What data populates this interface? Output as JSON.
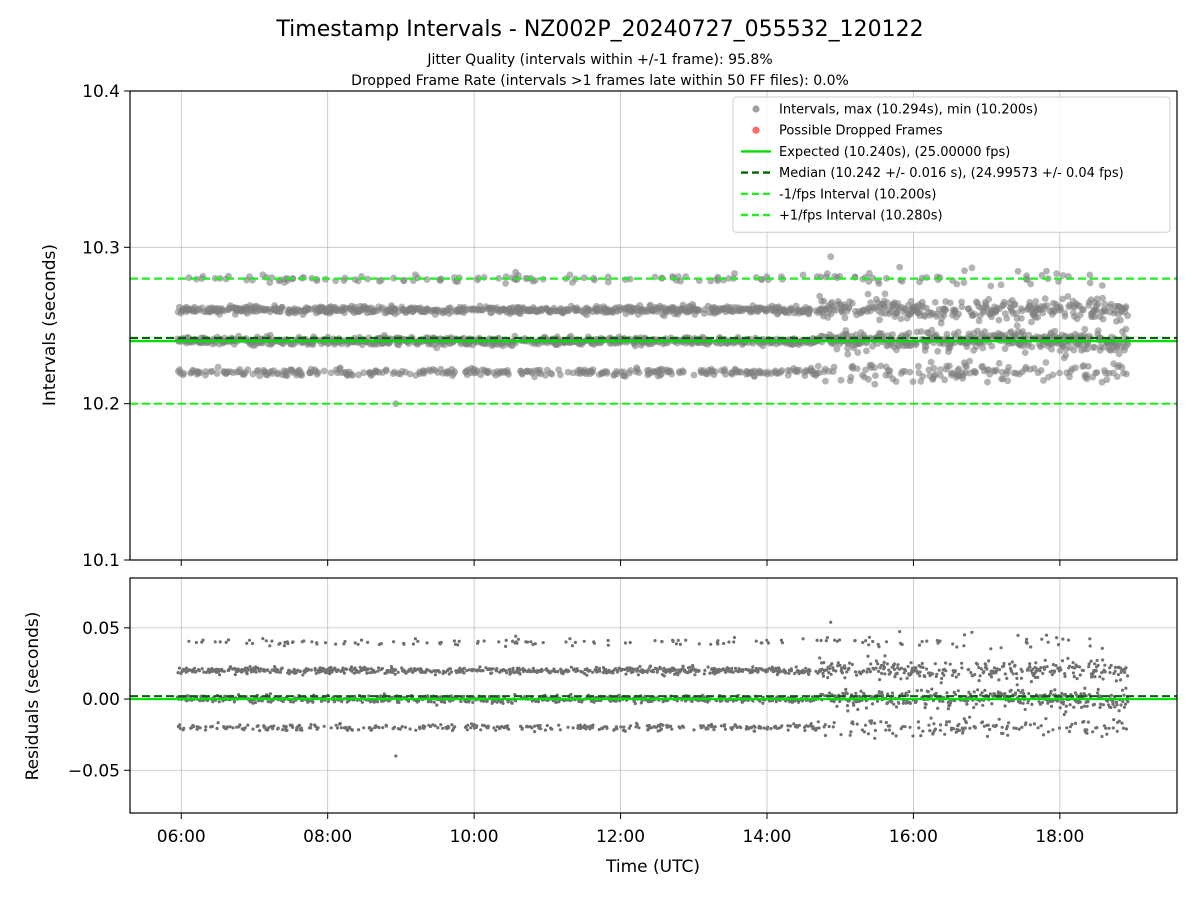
{
  "chart_data": [
    {
      "type": "scatter",
      "title": "Timestamp Intervals - NZ002P_20240727_055532_120122",
      "subtitle_lines": [
        "Jitter Quality (intervals within +/-1 frame): 95.8%",
        "Dropped Frame Rate (intervals >1 frames late within 50 FF files): 0.0%"
      ],
      "ylabel": "Intervals (seconds)",
      "xlabel": "",
      "ylim": [
        10.1,
        10.4
      ],
      "yticks": [
        10.1,
        10.2,
        10.3,
        10.4
      ],
      "ytick_labels": [
        "10.1",
        "10.2",
        "10.3",
        "10.4"
      ],
      "xlim_hours": [
        5.3,
        19.6
      ],
      "xticks_hours": [
        6,
        8,
        10,
        12,
        14,
        16,
        18
      ],
      "grid": true,
      "legend_placement": "top-right",
      "x_range_hours": [
        5.95,
        18.93
      ],
      "point_color": "#808080",
      "dropped_color": "#ff0000",
      "bands": [
        {
          "value": 10.28,
          "share": 0.06
        },
        {
          "value": 10.26,
          "share": 0.36
        },
        {
          "value": 10.24,
          "share": 0.4
        },
        {
          "value": 10.22,
          "share": 0.18
        }
      ],
      "max_point": {
        "x": 14.87,
        "y": 10.294
      },
      "min_point": {
        "x": 8.93,
        "y": 10.2
      },
      "reference_lines": [
        {
          "name": "expected",
          "value": 10.24,
          "color": "#00e000",
          "style": "solid"
        },
        {
          "name": "median",
          "value": 10.242,
          "color": "#006400",
          "style": "dashed"
        },
        {
          "name": "minus",
          "value": 10.2,
          "color": "#22ee22",
          "style": "dashed"
        },
        {
          "name": "plus",
          "value": 10.28,
          "color": "#22ee22",
          "style": "dashed"
        }
      ],
      "legend": [
        {
          "label": "Intervals, max (10.294s), min (10.200s)",
          "kind": "dot",
          "color": "#a0a0a0"
        },
        {
          "label": "Possible Dropped Frames",
          "kind": "dot",
          "color": "#ff6b6b"
        },
        {
          "label": "Expected (10.240s), (25.00000 fps)",
          "kind": "solid",
          "color": "#00e000"
        },
        {
          "label": "Median (10.242 +/- 0.016 s), (24.99573 +/- 0.04 fps)",
          "kind": "dashed",
          "color": "#006400"
        },
        {
          "label": "-1/fps Interval (10.200s)",
          "kind": "dashed",
          "color": "#22ee22"
        },
        {
          "label": "+1/fps Interval (10.280s)",
          "kind": "dashed",
          "color": "#22ee22"
        }
      ]
    },
    {
      "type": "scatter",
      "ylabel": "Residuals (seconds)",
      "xlabel": "Time (UTC)",
      "ylim": [
        -0.08,
        0.085
      ],
      "yticks": [
        -0.05,
        0.0,
        0.05
      ],
      "ytick_labels": [
        "−0.05",
        "0.00",
        "0.05"
      ],
      "xlim_hours": [
        5.3,
        19.6
      ],
      "xticks_hours": [
        6,
        8,
        10,
        12,
        14,
        16,
        18
      ],
      "xtick_labels": [
        "06:00",
        "08:00",
        "10:00",
        "12:00",
        "14:00",
        "16:00",
        "18:00"
      ],
      "grid": true,
      "point_color": "#707070",
      "bands": [
        {
          "value": 0.04,
          "share": 0.06
        },
        {
          "value": 0.02,
          "share": 0.36
        },
        {
          "value": 0.0,
          "share": 0.4
        },
        {
          "value": -0.02,
          "share": 0.18
        }
      ],
      "reference_lines": [
        {
          "name": "zero",
          "value": 0.0,
          "color": "#00e000",
          "style": "solid"
        },
        {
          "name": "median",
          "value": 0.002,
          "color": "#006400",
          "style": "dashed"
        }
      ]
    }
  ]
}
